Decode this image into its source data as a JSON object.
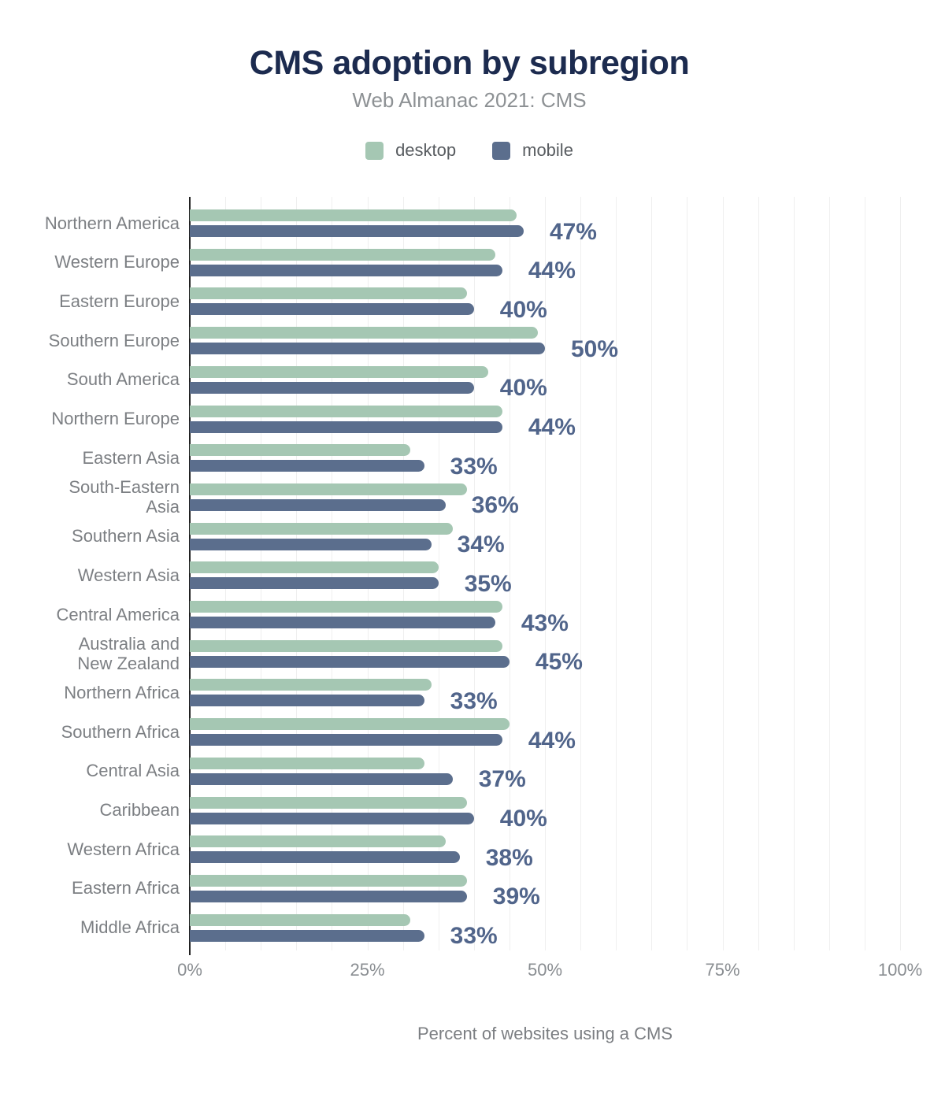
{
  "header": {
    "title": "CMS adoption by subregion",
    "subtitle": "Web Almanac 2021: CMS"
  },
  "caption": "Percent of websites using a CMS",
  "colors": {
    "title": "#1c2b4f",
    "subtitle": "#8d9194",
    "legend_text": "#585c60",
    "category_label": "#7c7f83",
    "tick_label": "#898d91",
    "caption": "#7b7e82",
    "value_label": "#51658b",
    "gridline": "#efefef",
    "axis_line": "#212121",
    "desktop_bar": "#a5c7b3",
    "mobile_bar": "#5b6e8d"
  },
  "chart_data": {
    "type": "bar",
    "orientation": "horizontal",
    "title": "CMS adoption by subregion",
    "subtitle": "Web Almanac 2021: CMS",
    "xlabel": "Percent of websites using a CMS",
    "xlim": [
      0,
      100
    ],
    "x_ticks": [
      "0%",
      "25%",
      "50%",
      "75%",
      "100%"
    ],
    "grid": "vertical every 5%",
    "legend_position": "top",
    "series_meta": [
      {
        "key": "desktop",
        "label": "desktop",
        "color": "#a5c7b3"
      },
      {
        "key": "mobile",
        "label": "mobile",
        "color": "#5b6e8d"
      }
    ],
    "value_label_series": "mobile",
    "rows": [
      {
        "region": "Northern America",
        "desktop": 46,
        "mobile": 47,
        "label": "47%"
      },
      {
        "region": "Western Europe",
        "desktop": 43,
        "mobile": 44,
        "label": "44%"
      },
      {
        "region": "Eastern Europe",
        "desktop": 39,
        "mobile": 40,
        "label": "40%"
      },
      {
        "region": "Southern Europe",
        "desktop": 49,
        "mobile": 50,
        "label": "50%"
      },
      {
        "region": "South America",
        "desktop": 42,
        "mobile": 40,
        "label": "40%"
      },
      {
        "region": "Northern Europe",
        "desktop": 44,
        "mobile": 44,
        "label": "44%"
      },
      {
        "region": "Eastern Asia",
        "desktop": 31,
        "mobile": 33,
        "label": "33%"
      },
      {
        "region": "South-Eastern Asia",
        "lines": [
          "South-Eastern",
          "Asia"
        ],
        "desktop": 39,
        "mobile": 36,
        "label": "36%"
      },
      {
        "region": "Southern Asia",
        "desktop": 37,
        "mobile": 34,
        "label": "34%"
      },
      {
        "region": "Western Asia",
        "desktop": 35,
        "mobile": 35,
        "label": "35%"
      },
      {
        "region": "Central America",
        "desktop": 44,
        "mobile": 43,
        "label": "43%"
      },
      {
        "region": "Australia and New Zealand",
        "lines": [
          "Australia and",
          "New Zealand"
        ],
        "desktop": 44,
        "mobile": 45,
        "label": "45%"
      },
      {
        "region": "Northern Africa",
        "desktop": 34,
        "mobile": 33,
        "label": "33%"
      },
      {
        "region": "Southern Africa",
        "desktop": 45,
        "mobile": 44,
        "label": "44%"
      },
      {
        "region": "Central Asia",
        "desktop": 33,
        "mobile": 37,
        "label": "37%"
      },
      {
        "region": "Caribbean",
        "desktop": 39,
        "mobile": 40,
        "label": "40%"
      },
      {
        "region": "Western Africa",
        "desktop": 36,
        "mobile": 38,
        "label": "38%"
      },
      {
        "region": "Eastern Africa",
        "desktop": 39,
        "mobile": 39,
        "label": "39%"
      },
      {
        "region": "Middle Africa",
        "desktop": 31,
        "mobile": 33,
        "label": "33%"
      }
    ]
  }
}
